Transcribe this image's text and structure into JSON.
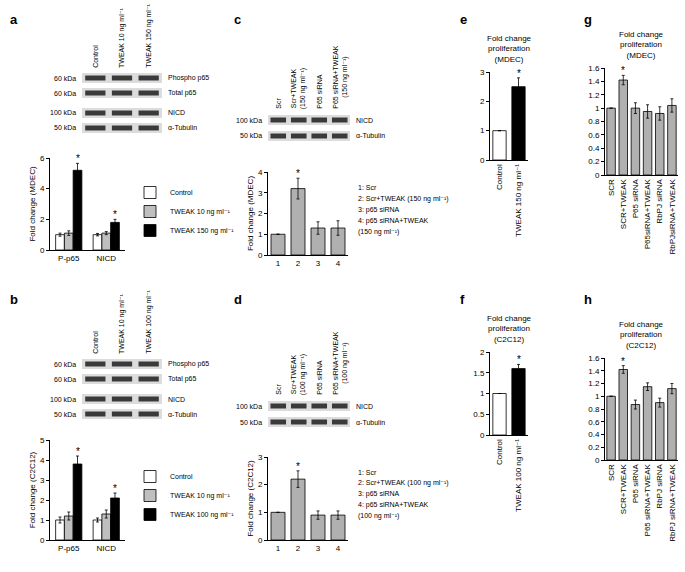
{
  "chart_data": [
    {
      "panel": "a",
      "type": "bar",
      "blot": {
        "lanes": [
          [
            "Control"
          ],
          [
            "TWEAK 10 ng ml⁻¹"
          ],
          [
            "TWEAK 150 ng ml⁻¹"
          ]
        ],
        "rows": [
          {
            "kda": "60 kDa",
            "label": "Phospho p65"
          },
          {
            "kda": "60 kDa",
            "label": "Total p65"
          },
          {
            "kda": "100 kDa",
            "label": "NICD"
          },
          {
            "kda": "50 kDa",
            "label": "α-Tubulin"
          }
        ]
      },
      "y_label": "Fold change (MDEC)",
      "categories": [
        "P-p65",
        "NICD"
      ],
      "series": [
        {
          "name": "Control",
          "color": "#ffffff",
          "values": [
            1,
            1
          ],
          "errors": [
            0.1,
            0.08
          ]
        },
        {
          "name": "TWEAK 10 ng ml⁻¹",
          "color": "#bfbfbf",
          "values": [
            1.1,
            1.1
          ],
          "errors": [
            0.15,
            0.1
          ]
        },
        {
          "name": "TWEAK 150 ng ml⁻¹",
          "color": "#000000",
          "values": [
            5.2,
            1.8
          ],
          "errors": [
            0.45,
            0.2
          ],
          "annotations": [
            "*",
            "*"
          ]
        }
      ],
      "ylim": [
        0,
        6
      ],
      "yticks": [
        0,
        2,
        4,
        6
      ],
      "legend": "right"
    },
    {
      "panel": "b",
      "type": "bar",
      "blot": {
        "lanes": [
          [
            "Control"
          ],
          [
            "TWEAK 10 ng ml⁻¹"
          ],
          [
            "TWEAK 100 ng ml⁻¹"
          ]
        ],
        "rows": [
          {
            "kda": "60 kDa",
            "label": "Phospho p65"
          },
          {
            "kda": "60 kDa",
            "label": "Total p65"
          },
          {
            "kda": "100 kDa",
            "label": "NICD"
          },
          {
            "kda": "50 kDa",
            "label": "α-Tubulin"
          }
        ]
      },
      "y_label": "Fold change (C2C12)",
      "categories": [
        "P-p65",
        "NICD"
      ],
      "series": [
        {
          "name": "Control",
          "color": "#ffffff",
          "values": [
            1,
            1
          ],
          "errors": [
            0.15,
            0.1
          ]
        },
        {
          "name": "TWEAK 10 ng ml⁻¹",
          "color": "#bfbfbf",
          "values": [
            1.2,
            1.3
          ],
          "errors": [
            0.2,
            0.2
          ]
        },
        {
          "name": "TWEAK 100 ng ml⁻¹",
          "color": "#000000",
          "values": [
            3.8,
            2.1
          ],
          "errors": [
            0.4,
            0.25
          ],
          "annotations": [
            "*",
            "*"
          ]
        }
      ],
      "ylim": [
        0,
        5
      ],
      "yticks": [
        0,
        1,
        2,
        3,
        4,
        5
      ],
      "legend": "right"
    },
    {
      "panel": "c",
      "type": "bar",
      "blot": {
        "lanes": [
          [
            "Scr"
          ],
          [
            "Scr+TWEAK",
            "(150 ng ml⁻¹)"
          ],
          [
            "P65 siRNA"
          ],
          [
            "P65 siRNA+TWEAK",
            "(150 ng ml⁻¹)"
          ]
        ],
        "rows": [
          {
            "kda": "100 kDa",
            "label": "NICD"
          },
          {
            "kda": "50 kDa",
            "label": "α-Tubulin"
          }
        ]
      },
      "y_label": "Fold change (MDEC)",
      "categories": [
        "1",
        "2",
        "3",
        "4"
      ],
      "values": [
        1,
        3.2,
        1.3,
        1.3
      ],
      "errors": [
        0,
        0.5,
        0.3,
        0.35
      ],
      "annotations": [
        null,
        "*",
        null,
        null
      ],
      "color": "#b0b0b0",
      "key": [
        "1: Scr",
        "2: Scr+TWEAK (150 ng ml⁻¹)",
        "3: p65 siRNA",
        "4: p65 siRNA+TWEAK",
        "(150 ng ml⁻¹)"
      ],
      "ylim": [
        0,
        4
      ],
      "yticks": [
        0,
        1,
        2,
        3,
        4
      ]
    },
    {
      "panel": "d",
      "type": "bar",
      "blot": {
        "lanes": [
          [
            "Scr"
          ],
          [
            "Scr+TWEAK",
            "(100 ng ml⁻¹)"
          ],
          [
            "P65 siRNA"
          ],
          [
            "P65 siRNA+TWEAK",
            "(100 ng ml⁻¹)"
          ]
        ],
        "rows": [
          {
            "kda": "100 kDa",
            "label": "NICD"
          },
          {
            "kda": "50 kDa",
            "label": "α-Tubulin"
          }
        ]
      },
      "y_label": "Fold change (C2C12)",
      "categories": [
        "1",
        "2",
        "3",
        "4"
      ],
      "values": [
        1,
        2.2,
        0.9,
        0.9
      ],
      "errors": [
        0,
        0.3,
        0.15,
        0.15
      ],
      "annotations": [
        null,
        "*",
        null,
        null
      ],
      "color": "#b0b0b0",
      "key": [
        "1: Scr",
        "2: Scr+TWEAK (100 ng ml⁻¹)",
        "3: p65 siRNA",
        "4: p65 siRNA+TWEAK",
        "(100 ng ml⁻¹)"
      ],
      "ylim": [
        0,
        3
      ],
      "yticks": [
        0,
        1,
        2,
        3
      ]
    },
    {
      "panel": "e",
      "type": "bar",
      "title": [
        "Fold change",
        "proliferation",
        "(MDEC)"
      ],
      "categories": [
        "Control",
        "TWEAK 150 ng ml⁻¹"
      ],
      "values": [
        1,
        2.5
      ],
      "errors": [
        0,
        0.3
      ],
      "annotations": [
        null,
        "*"
      ],
      "colors": [
        "#ffffff",
        "#000000"
      ],
      "ylim": [
        0,
        3
      ],
      "yticks": [
        0,
        1,
        2,
        3
      ]
    },
    {
      "panel": "f",
      "type": "bar",
      "title": [
        "Fold change",
        "proliferation",
        "(C2C12)"
      ],
      "categories": [
        "Control",
        "TWEAK 100 ng ml⁻¹"
      ],
      "values": [
        1,
        1.6
      ],
      "errors": [
        0,
        0.1
      ],
      "annotations": [
        null,
        "*"
      ],
      "colors": [
        "#ffffff",
        "#000000"
      ],
      "ylim": [
        0,
        2
      ],
      "yticks": [
        0,
        0.5,
        1,
        1.5,
        2
      ]
    },
    {
      "panel": "g",
      "type": "bar",
      "title": [
        "Fold change",
        "proliferation",
        "(MDEC)"
      ],
      "categories": [
        "SCR",
        "SCR+TWEAK",
        "P65 siRNA",
        "P65siRNA+TWEAK",
        "RbPJ siRNA",
        "RbPJsiRNA+TWEAK"
      ],
      "values": [
        1,
        1.42,
        1.0,
        0.95,
        0.92,
        1.04
      ],
      "errors": [
        0,
        0.07,
        0.08,
        0.1,
        0.1,
        0.1
      ],
      "annotations": [
        null,
        "*",
        null,
        null,
        null,
        null
      ],
      "color": "#b0b0b0",
      "ylim": [
        0,
        1.6
      ],
      "yticks": [
        0,
        0.2,
        0.4,
        0.6,
        0.8,
        1,
        1.2,
        1.4,
        1.6
      ]
    },
    {
      "panel": "h",
      "type": "bar",
      "title": [
        "Fold change",
        "proliferation",
        "(C2C12)"
      ],
      "categories": [
        "SCR",
        "SCR+TWEAK",
        "P65 siRNA",
        "P65 siRNA+TWEAK",
        "RbPJ siRNA",
        "RbPJ siRNA+TWEAK"
      ],
      "values": [
        1,
        1.42,
        0.87,
        1.15,
        0.9,
        1.12
      ],
      "errors": [
        0,
        0.06,
        0.07,
        0.06,
        0.07,
        0.08
      ],
      "annotations": [
        null,
        "*",
        null,
        null,
        null,
        null
      ],
      "color": "#b0b0b0",
      "ylim": [
        0,
        1.6
      ],
      "yticks": [
        0,
        0.2,
        0.4,
        0.6,
        0.8,
        1,
        1.2,
        1.4,
        1.6
      ]
    }
  ]
}
